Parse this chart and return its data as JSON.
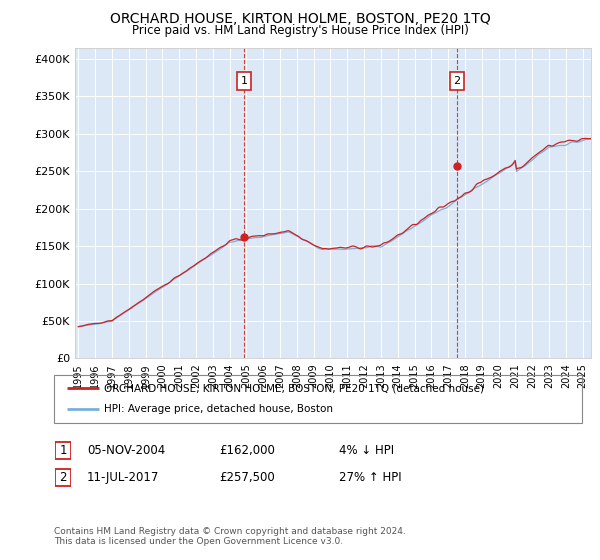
{
  "title": "ORCHARD HOUSE, KIRTON HOLME, BOSTON, PE20 1TQ",
  "subtitle": "Price paid vs. HM Land Registry's House Price Index (HPI)",
  "ylabel_ticks": [
    "£0",
    "£50K",
    "£100K",
    "£150K",
    "£200K",
    "£250K",
    "£300K",
    "£350K",
    "£400K"
  ],
  "ytick_values": [
    0,
    50000,
    100000,
    150000,
    200000,
    250000,
    300000,
    350000,
    400000
  ],
  "ylim": [
    0,
    415000
  ],
  "xlim_start": 1994.8,
  "xlim_end": 2025.5,
  "plot_bg_color": "#dce8f5",
  "legend1_label": "ORCHARD HOUSE, KIRTON HOLME, BOSTON, PE20 1TQ (detached house)",
  "legend2_label": "HPI: Average price, detached house, Boston",
  "footnote": "Contains HM Land Registry data © Crown copyright and database right 2024.\nThis data is licensed under the Open Government Licence v3.0.",
  "purchase1_date": "05-NOV-2004",
  "purchase1_price": 162000,
  "purchase1_label": "£162,000",
  "purchase1_pct": "4% ↓ HPI",
  "purchase2_date": "11-JUL-2017",
  "purchase2_price": 257500,
  "purchase2_label": "£257,500",
  "purchase2_pct": "27% ↑ HPI",
  "hpi_color": "#7ab0d8",
  "price_color": "#cc2222",
  "grid_color": "#ffffff",
  "purchase1_x": 2004.85,
  "purchase2_x": 2017.53,
  "marker_color": "#cc2222"
}
